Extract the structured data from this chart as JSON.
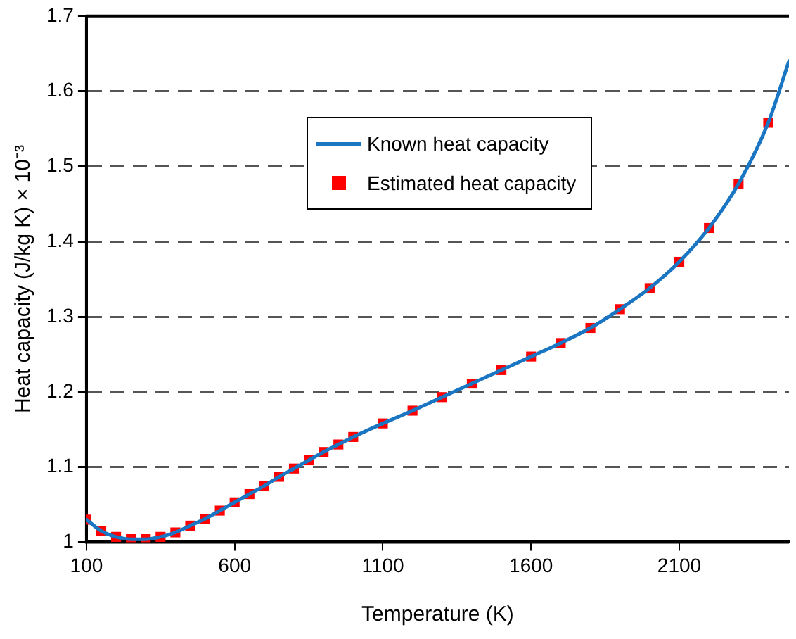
{
  "chart_data": {
    "type": "line",
    "xlabel": "Temperature (K)",
    "ylabel": "Heat capacity (J/kg K) × 10⁻³",
    "xlim": [
      100,
      2470
    ],
    "xticks": [
      100,
      600,
      1100,
      1600,
      2100
    ],
    "ylim": [
      1,
      1.7
    ],
    "yticks": [
      1,
      1.1,
      1.2,
      1.3,
      1.4,
      1.5,
      1.6,
      1.7
    ],
    "grid": "y",
    "legend": "top",
    "series": [
      {
        "name": "Known heat capacity",
        "color": "#1a75c2",
        "marker": "none",
        "line_style": "solid",
        "x": [
          100,
          150,
          200,
          250,
          300,
          350,
          400,
          450,
          500,
          550,
          600,
          650,
          700,
          750,
          800,
          850,
          900,
          950,
          1000,
          1100,
          1200,
          1300,
          1400,
          1500,
          1600,
          1700,
          1800,
          1900,
          2000,
          2100,
          2200,
          2300,
          2400,
          2470
        ],
        "values": [
          1.03,
          1.015,
          1.007,
          1.004,
          1.004,
          1.007,
          1.013,
          1.022,
          1.031,
          1.042,
          1.053,
          1.064,
          1.075,
          1.087,
          1.098,
          1.109,
          1.12,
          1.13,
          1.14,
          1.158,
          1.175,
          1.193,
          1.211,
          1.229,
          1.247,
          1.265,
          1.285,
          1.31,
          1.338,
          1.373,
          1.418,
          1.477,
          1.558,
          1.64
        ]
      },
      {
        "name": "Estimated heat capacity",
        "type": "scatter",
        "color": "#ff0000",
        "marker": "square",
        "x": [
          100,
          150,
          200,
          250,
          300,
          350,
          400,
          450,
          500,
          550,
          600,
          650,
          700,
          750,
          800,
          850,
          900,
          950,
          1000,
          1100,
          1200,
          1300,
          1400,
          1500,
          1600,
          1700,
          1800,
          1900,
          2000,
          2100,
          2200,
          2300,
          2400
        ],
        "values": [
          1.03,
          1.015,
          1.007,
          1.004,
          1.004,
          1.007,
          1.013,
          1.022,
          1.031,
          1.042,
          1.053,
          1.064,
          1.075,
          1.087,
          1.098,
          1.109,
          1.12,
          1.13,
          1.14,
          1.158,
          1.175,
          1.193,
          1.211,
          1.229,
          1.247,
          1.265,
          1.285,
          1.31,
          1.338,
          1.373,
          1.418,
          1.477,
          1.558
        ]
      }
    ]
  }
}
